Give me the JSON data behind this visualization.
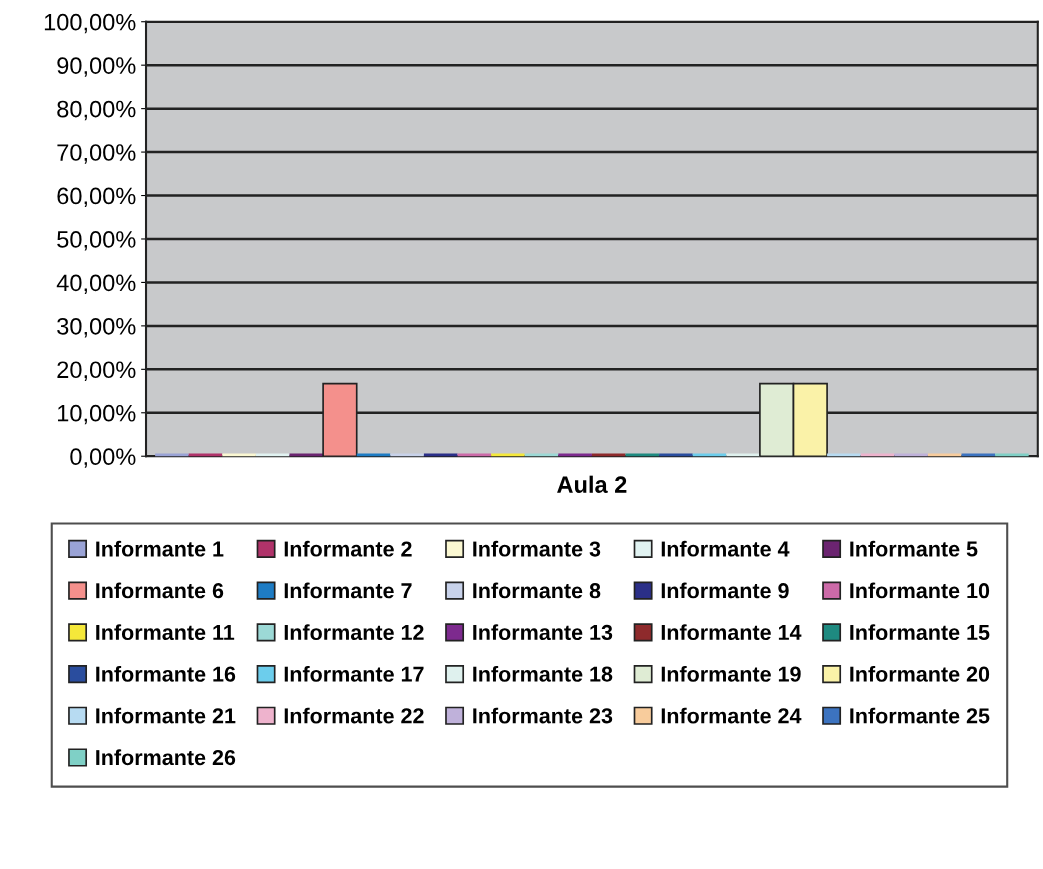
{
  "chart_data": {
    "type": "bar",
    "categories": [
      "Aula 2"
    ],
    "series": [
      {
        "name": "Informante 1",
        "color": "#9aa3d6",
        "values": [
          0
        ]
      },
      {
        "name": "Informante 2",
        "color": "#b0336a",
        "values": [
          0
        ]
      },
      {
        "name": "Informante 3",
        "color": "#fbf8d2",
        "values": [
          0
        ]
      },
      {
        "name": "Informante 4",
        "color": "#e1f3f2",
        "values": [
          0
        ]
      },
      {
        "name": "Informante 5",
        "color": "#6b2470",
        "values": [
          0
        ]
      },
      {
        "name": "Informante 6",
        "color": "#f4908c",
        "values": [
          16.7
        ]
      },
      {
        "name": "Informante 7",
        "color": "#1e7cc4",
        "values": [
          0
        ]
      },
      {
        "name": "Informante 8",
        "color": "#c8d2ea",
        "values": [
          0
        ]
      },
      {
        "name": "Informante 9",
        "color": "#2b2f88",
        "values": [
          0
        ]
      },
      {
        "name": "Informante 10",
        "color": "#cc6aa8",
        "values": [
          0
        ]
      },
      {
        "name": "Informante 11",
        "color": "#f5e83a",
        "values": [
          0
        ]
      },
      {
        "name": "Informante 12",
        "color": "#9cd9d6",
        "values": [
          0
        ]
      },
      {
        "name": "Informante 13",
        "color": "#7d2a8e",
        "values": [
          0
        ]
      },
      {
        "name": "Informante 14",
        "color": "#8e2a2c",
        "values": [
          0
        ]
      },
      {
        "name": "Informante 15",
        "color": "#1e8a80",
        "values": [
          0
        ]
      },
      {
        "name": "Informante 16",
        "color": "#2a4d9e",
        "values": [
          0
        ]
      },
      {
        "name": "Informante 17",
        "color": "#6ccdec",
        "values": [
          0
        ]
      },
      {
        "name": "Informante 18",
        "color": "#dff1ee",
        "values": [
          0
        ]
      },
      {
        "name": "Informante 19",
        "color": "#dfecd4",
        "values": [
          16.7
        ]
      },
      {
        "name": "Informante 20",
        "color": "#faf2a8",
        "values": [
          16.7
        ]
      },
      {
        "name": "Informante 21",
        "color": "#b7dbf2",
        "values": [
          0
        ]
      },
      {
        "name": "Informante 22",
        "color": "#eeb3cd",
        "values": [
          0
        ]
      },
      {
        "name": "Informante 23",
        "color": "#bfb1da",
        "values": [
          0
        ]
      },
      {
        "name": "Informante 24",
        "color": "#f8cc9c",
        "values": [
          0
        ]
      },
      {
        "name": "Informante 25",
        "color": "#3c73c0",
        "values": [
          0
        ]
      },
      {
        "name": "Informante 26",
        "color": "#7fd0c6",
        "values": [
          0
        ]
      }
    ],
    "ylim": [
      0,
      100
    ],
    "yticks": [
      {
        "value": 0,
        "label": "0,00%"
      },
      {
        "value": 10,
        "label": "10,00%"
      },
      {
        "value": 20,
        "label": "20,00%"
      },
      {
        "value": 30,
        "label": "30,00%"
      },
      {
        "value": 40,
        "label": "40,00%"
      },
      {
        "value": 50,
        "label": "50,00%"
      },
      {
        "value": 60,
        "label": "60,00%"
      },
      {
        "value": 70,
        "label": "70,00%"
      },
      {
        "value": 80,
        "label": "80,00%"
      },
      {
        "value": 90,
        "label": "90,00%"
      },
      {
        "value": 100,
        "label": "100,00%"
      }
    ],
    "grid": "y",
    "legend": "bottom"
  }
}
